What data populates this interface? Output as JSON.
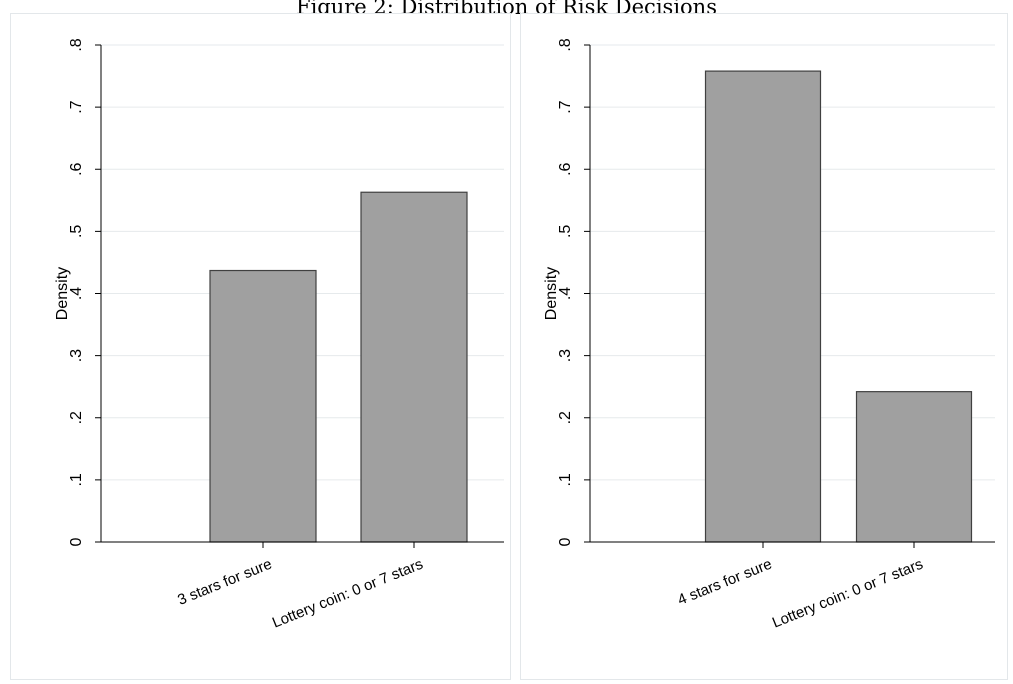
{
  "figure_title": "Figure 2: Distribution of Risk Decisions",
  "colors": {
    "bar_fill": "#a0a0a0",
    "bar_stroke": "#404040",
    "grid": "#e6eaec",
    "axis": "#000000"
  },
  "chart_data": [
    {
      "type": "bar",
      "categories": [
        "3 stars for sure",
        "Lottery coin: 0 or 7 stars"
      ],
      "values": [
        0.437,
        0.563
      ],
      "ylabel": "Density",
      "yticks": [
        "0",
        ".1",
        ".2",
        ".3",
        ".4",
        ".5",
        ".6",
        ".7",
        ".8"
      ],
      "ylim": [
        0,
        0.8
      ],
      "grid": true
    },
    {
      "type": "bar",
      "categories": [
        "4 stars for sure",
        "Lottery coin: 0 or 7 stars"
      ],
      "values": [
        0.758,
        0.242
      ],
      "ylabel": "Density",
      "yticks": [
        "0",
        ".1",
        ".2",
        ".3",
        ".4",
        ".5",
        ".6",
        ".7",
        ".8"
      ],
      "ylim": [
        0,
        0.8
      ],
      "grid": true
    }
  ]
}
